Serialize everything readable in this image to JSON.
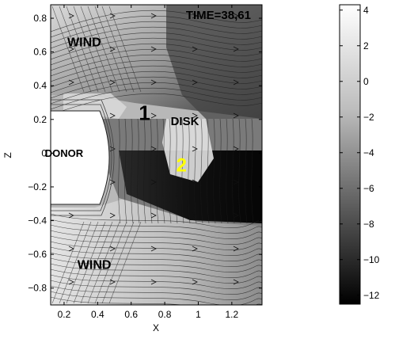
{
  "chart_data": {
    "type": "heatmap",
    "title": "",
    "xlabel": "X",
    "ylabel": "Z",
    "xlim": [
      0.12,
      1.38
    ],
    "ylim": [
      -0.9,
      0.88
    ],
    "x_ticks": [
      0.2,
      0.4,
      0.6,
      0.8,
      1,
      1.2
    ],
    "x_tick_labels": [
      "0.2",
      "0.4",
      "0.6",
      "0.8",
      "1",
      "1.2"
    ],
    "y_ticks": [
      0.8,
      0.6,
      0.4,
      0.2,
      0,
      -0.2,
      -0.4,
      -0.6,
      -0.8
    ],
    "y_tick_labels": [
      "0.8",
      "0.6",
      "0.4",
      "0.2",
      "0",
      "−0.2",
      "−0.4",
      "−0.6",
      "−0.8"
    ],
    "colorbar": {
      "range": [
        -12.5,
        4.3
      ],
      "ticks": [
        4,
        2,
        0,
        -2,
        -4,
        -6,
        -8,
        -10,
        -12
      ],
      "tick_labels": [
        "4",
        "2",
        "0",
        "−2",
        "−4",
        "−6",
        "−8",
        "−10",
        "−12"
      ],
      "colormap": "gray"
    },
    "annotations": [
      {
        "text": "TIME=38,61",
        "x": 1.12,
        "z": 0.82,
        "color": "#000000"
      },
      {
        "text": "WIND",
        "x": 0.32,
        "z": 0.66,
        "color": "#000000"
      },
      {
        "text": "1",
        "x": 0.68,
        "z": 0.24,
        "color": "#000000"
      },
      {
        "text": "DISK",
        "x": 0.92,
        "z": 0.19,
        "color": "#000000"
      },
      {
        "text": "DONOR",
        "x": 0.2,
        "z": 0.0,
        "color": "#000000"
      },
      {
        "text": "2",
        "x": 0.9,
        "z": -0.07,
        "color": "#ffff00"
      },
      {
        "text": "WIND",
        "x": 0.38,
        "z": -0.66,
        "color": "#000000"
      }
    ]
  }
}
